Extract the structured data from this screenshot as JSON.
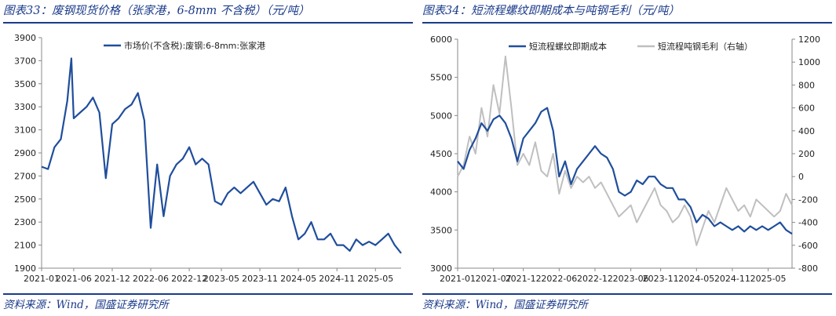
{
  "panels": [
    {
      "title": "图表33：废钢现货价格（张家港，6-8mm 不含税）（元/吨）",
      "source": "资料来源：Wind，国盛证券研究所"
    },
    {
      "title": "图表34：短流程螺纹即期成本与吨钢毛利（元/吨）",
      "source": "资料来源：Wind，国盛证券研究所"
    }
  ],
  "chart_data": [
    {
      "type": "line",
      "legend_position": "top-right",
      "grid": false,
      "x_ticks": [
        "2021-01",
        "2021-06",
        "2021-12",
        "2022-06",
        "2022-12",
        "2023-05",
        "2023-11",
        "2024-05",
        "2024-11",
        "2025-05"
      ],
      "xlim": [
        "2021-01",
        "2025-09"
      ],
      "ylim": [
        1900,
        3900
      ],
      "y_ticks": [
        1900,
        2100,
        2300,
        2500,
        2700,
        2900,
        3100,
        3300,
        3500,
        3700,
        3900
      ],
      "series": [
        {
          "name": "市场价(不含税):废钢:6-8mm:张家港",
          "color": "#1f4e9c",
          "points": [
            [
              "2021-01",
              2780
            ],
            [
              "2021-02",
              2760
            ],
            [
              "2021-03",
              2950
            ],
            [
              "2021-04",
              3020
            ],
            [
              "2021-05",
              3350
            ],
            [
              "2021-05-20",
              3720
            ],
            [
              "2021-06",
              3200
            ],
            [
              "2021-07",
              3250
            ],
            [
              "2021-08",
              3300
            ],
            [
              "2021-09",
              3380
            ],
            [
              "2021-10",
              3250
            ],
            [
              "2021-11",
              2680
            ],
            [
              "2021-12",
              3150
            ],
            [
              "2022-01",
              3200
            ],
            [
              "2022-02",
              3280
            ],
            [
              "2022-03",
              3320
            ],
            [
              "2022-04",
              3420
            ],
            [
              "2022-05",
              3180
            ],
            [
              "2022-06",
              2250
            ],
            [
              "2022-07",
              2800
            ],
            [
              "2022-08",
              2350
            ],
            [
              "2022-09",
              2700
            ],
            [
              "2022-10",
              2800
            ],
            [
              "2022-11",
              2850
            ],
            [
              "2022-12",
              2950
            ],
            [
              "2023-01",
              2800
            ],
            [
              "2023-02",
              2850
            ],
            [
              "2023-03",
              2800
            ],
            [
              "2023-04",
              2480
            ],
            [
              "2023-05",
              2450
            ],
            [
              "2023-06",
              2550
            ],
            [
              "2023-07",
              2600
            ],
            [
              "2023-08",
              2550
            ],
            [
              "2023-09",
              2600
            ],
            [
              "2023-10",
              2650
            ],
            [
              "2023-11",
              2550
            ],
            [
              "2023-12",
              2450
            ],
            [
              "2024-01",
              2500
            ],
            [
              "2024-02",
              2480
            ],
            [
              "2024-03",
              2600
            ],
            [
              "2024-04",
              2350
            ],
            [
              "2024-05",
              2150
            ],
            [
              "2024-06",
              2200
            ],
            [
              "2024-07",
              2300
            ],
            [
              "2024-08",
              2150
            ],
            [
              "2024-09",
              2150
            ],
            [
              "2024-10",
              2200
            ],
            [
              "2024-11",
              2100
            ],
            [
              "2024-12",
              2100
            ],
            [
              "2025-01",
              2050
            ],
            [
              "2025-02",
              2150
            ],
            [
              "2025-03",
              2100
            ],
            [
              "2025-04",
              2130
            ],
            [
              "2025-05",
              2100
            ],
            [
              "2025-06",
              2150
            ],
            [
              "2025-07",
              2200
            ],
            [
              "2025-08",
              2100
            ],
            [
              "2025-09",
              2030
            ]
          ]
        }
      ]
    },
    {
      "type": "line",
      "legend_position": "top",
      "grid": false,
      "x_ticks": [
        "2021-01",
        "2021-07",
        "2021-12",
        "2022-06",
        "2022-12",
        "2023-06",
        "2023-11",
        "2024-05",
        "2024-11",
        "2025-05"
      ],
      "xlim": [
        "2021-01",
        "2025-09"
      ],
      "ylim": [
        3000,
        6000
      ],
      "y_ticks": [
        3000,
        3500,
        4000,
        4500,
        5000,
        5500,
        6000
      ],
      "y2lim": [
        -800,
        1200
      ],
      "y2_ticks": [
        -800,
        -600,
        -400,
        -200,
        0,
        200,
        400,
        600,
        800,
        1000,
        1200
      ],
      "series": [
        {
          "name": "短流程螺纹即期成本",
          "axis": "left",
          "color": "#1f4e9c",
          "points": [
            [
              "2021-01",
              4400
            ],
            [
              "2021-02",
              4300
            ],
            [
              "2021-03",
              4550
            ],
            [
              "2021-04",
              4700
            ],
            [
              "2021-05",
              4900
            ],
            [
              "2021-06",
              4800
            ],
            [
              "2021-07",
              4950
            ],
            [
              "2021-08",
              5000
            ],
            [
              "2021-09",
              4900
            ],
            [
              "2021-10",
              4700
            ],
            [
              "2021-11",
              4400
            ],
            [
              "2021-12",
              4700
            ],
            [
              "2022-01",
              4800
            ],
            [
              "2022-02",
              4900
            ],
            [
              "2022-03",
              5050
            ],
            [
              "2022-04",
              5100
            ],
            [
              "2022-05",
              4800
            ],
            [
              "2022-06",
              4200
            ],
            [
              "2022-07",
              4400
            ],
            [
              "2022-08",
              4100
            ],
            [
              "2022-09",
              4300
            ],
            [
              "2022-10",
              4400
            ],
            [
              "2022-11",
              4500
            ],
            [
              "2022-12",
              4600
            ],
            [
              "2023-01",
              4500
            ],
            [
              "2023-02",
              4450
            ],
            [
              "2023-03",
              4300
            ],
            [
              "2023-04",
              4000
            ],
            [
              "2023-05",
              3950
            ],
            [
              "2023-06",
              4000
            ],
            [
              "2023-07",
              4150
            ],
            [
              "2023-08",
              4100
            ],
            [
              "2023-09",
              4200
            ],
            [
              "2023-10",
              4200
            ],
            [
              "2023-11",
              4100
            ],
            [
              "2023-12",
              4050
            ],
            [
              "2024-01",
              4050
            ],
            [
              "2024-02",
              3900
            ],
            [
              "2024-03",
              3900
            ],
            [
              "2024-04",
              3800
            ],
            [
              "2024-05",
              3600
            ],
            [
              "2024-06",
              3700
            ],
            [
              "2024-07",
              3650
            ],
            [
              "2024-08",
              3550
            ],
            [
              "2024-09",
              3600
            ],
            [
              "2024-10",
              3550
            ],
            [
              "2024-11",
              3500
            ],
            [
              "2024-12",
              3550
            ],
            [
              "2025-01",
              3480
            ],
            [
              "2025-02",
              3550
            ],
            [
              "2025-03",
              3500
            ],
            [
              "2025-04",
              3550
            ],
            [
              "2025-05",
              3500
            ],
            [
              "2025-06",
              3550
            ],
            [
              "2025-07",
              3600
            ],
            [
              "2025-08",
              3500
            ],
            [
              "2025-09",
              3450
            ]
          ]
        },
        {
          "name": "短流程吨钢毛利（右轴）",
          "axis": "right",
          "color": "#bfbfbf",
          "points": [
            [
              "2021-01",
              0
            ],
            [
              "2021-02",
              100
            ],
            [
              "2021-03",
              350
            ],
            [
              "2021-04",
              200
            ],
            [
              "2021-05",
              600
            ],
            [
              "2021-06",
              350
            ],
            [
              "2021-07",
              800
            ],
            [
              "2021-08",
              550
            ],
            [
              "2021-09",
              1050
            ],
            [
              "2021-10",
              600
            ],
            [
              "2021-11",
              100
            ],
            [
              "2021-12",
              200
            ],
            [
              "2022-01",
              100
            ],
            [
              "2022-02",
              300
            ],
            [
              "2022-03",
              50
            ],
            [
              "2022-04",
              0
            ],
            [
              "2022-05",
              200
            ],
            [
              "2022-06",
              -150
            ],
            [
              "2022-07",
              50
            ],
            [
              "2022-08",
              -100
            ],
            [
              "2022-09",
              0
            ],
            [
              "2022-10",
              -50
            ],
            [
              "2022-11",
              0
            ],
            [
              "2022-12",
              -100
            ],
            [
              "2023-01",
              -50
            ],
            [
              "2023-02",
              -150
            ],
            [
              "2023-03",
              -250
            ],
            [
              "2023-04",
              -350
            ],
            [
              "2023-05",
              -300
            ],
            [
              "2023-06",
              -250
            ],
            [
              "2023-07",
              -400
            ],
            [
              "2023-08",
              -300
            ],
            [
              "2023-09",
              -200
            ],
            [
              "2023-10",
              -100
            ],
            [
              "2023-11",
              -250
            ],
            [
              "2023-12",
              -300
            ],
            [
              "2024-01",
              -400
            ],
            [
              "2024-02",
              -350
            ],
            [
              "2024-03",
              -250
            ],
            [
              "2024-04",
              -350
            ],
            [
              "2024-05",
              -600
            ],
            [
              "2024-06",
              -450
            ],
            [
              "2024-07",
              -300
            ],
            [
              "2024-08",
              -400
            ],
            [
              "2024-09",
              -250
            ],
            [
              "2024-10",
              -100
            ],
            [
              "2024-11",
              -200
            ],
            [
              "2024-12",
              -300
            ],
            [
              "2025-01",
              -250
            ],
            [
              "2025-02",
              -350
            ],
            [
              "2025-03",
              -200
            ],
            [
              "2025-04",
              -250
            ],
            [
              "2025-05",
              -300
            ],
            [
              "2025-06",
              -350
            ],
            [
              "2025-07",
              -300
            ],
            [
              "2025-08",
              -150
            ],
            [
              "2025-09",
              -250
            ]
          ]
        }
      ]
    }
  ]
}
